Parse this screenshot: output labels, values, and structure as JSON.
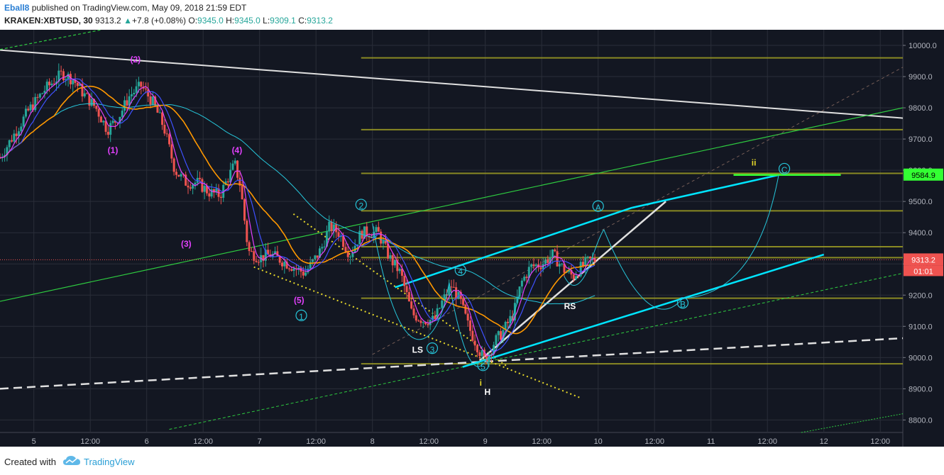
{
  "header": {
    "author": "Eball8",
    "published": "published on TradingView.com, May 09, 2018 21:59 EDT",
    "symbol": "KRAKEN:XBTUSD, 30",
    "last": "9313.2",
    "change": "+7.8 (+0.08%)",
    "o_label": "O:",
    "o": "9345.0",
    "h_label": "H:",
    "h": "9345.0",
    "l_label": "L:",
    "l": "9309.1",
    "c_label": "C:",
    "c": "9313.2"
  },
  "footer": {
    "created_with": "Created with",
    "brand": "TradingView"
  },
  "chart_data": {
    "type": "candlestick",
    "symbol": "KRAKEN:XBTUSD",
    "interval": "30",
    "ylim": [
      8760,
      10050
    ],
    "y_ticks": [
      10000,
      9900,
      9800,
      9700,
      9600,
      9500,
      9400,
      9300,
      9200,
      9100,
      9000,
      8900,
      8800
    ],
    "y_tick_labels": [
      "10000.0",
      "9900.0",
      "9800.0",
      "9700.0",
      "9600.0",
      "9500.0",
      "9400.0",
      "9300.0",
      "9200.0",
      "9100.0",
      "9000.0",
      "8900.0",
      "8800.0"
    ],
    "xlim": [
      4.7,
      12.7
    ],
    "x_ticks": [
      5,
      5.5,
      6,
      6.5,
      7,
      7.5,
      8,
      8.5,
      9,
      9.5,
      10,
      10.5,
      11,
      11.5,
      12,
      12.5
    ],
    "x_tick_labels": [
      "5",
      "12:00",
      "6",
      "12:00",
      "7",
      "12:00",
      "8",
      "12:00",
      "9",
      "12:00",
      "10",
      "12:00",
      "11",
      "12:00",
      "12",
      "12:00"
    ],
    "price_label": "9313.2",
    "price": 9313.2,
    "countdown_label": "01:01",
    "target_label": "9584.9",
    "target": 9584.9,
    "colors": {
      "background": "#131722",
      "grid": "#2a2e39",
      "axis_text": "#b2b5be",
      "up": "#26a69a",
      "down": "#ef5350",
      "ma_fast": "#3f51ff",
      "ma_mid": "#e040fb",
      "ma_orange": "#ff9800",
      "ma_cyan": "#26c6da",
      "trend": "#00e5ff",
      "level": "#9e9d24",
      "green_line": "#2ecc40",
      "yellow_dots": "#e6d82a"
    },
    "price_path": [
      [
        4.7,
        9640
      ],
      [
        4.8,
        9700
      ],
      [
        4.95,
        9790
      ],
      [
        5.1,
        9860
      ],
      [
        5.25,
        9910
      ],
      [
        5.35,
        9890
      ],
      [
        5.45,
        9840
      ],
      [
        5.55,
        9800
      ],
      [
        5.65,
        9730
      ],
      [
        5.75,
        9770
      ],
      [
        5.85,
        9840
      ],
      [
        5.95,
        9870
      ],
      [
        6.05,
        9820
      ],
      [
        6.15,
        9740
      ],
      [
        6.25,
        9600
      ],
      [
        6.35,
        9560
      ],
      [
        6.45,
        9560
      ],
      [
        6.55,
        9530
      ],
      [
        6.65,
        9520
      ],
      [
        6.7,
        9560
      ],
      [
        6.78,
        9620
      ],
      [
        6.83,
        9550
      ],
      [
        6.9,
        9340
      ],
      [
        7.0,
        9320
      ],
      [
        7.1,
        9330
      ],
      [
        7.2,
        9310
      ],
      [
        7.3,
        9290
      ],
      [
        7.4,
        9270
      ],
      [
        7.48,
        9310
      ],
      [
        7.55,
        9350
      ],
      [
        7.62,
        9420
      ],
      [
        7.7,
        9400
      ],
      [
        7.8,
        9330
      ],
      [
        7.9,
        9400
      ],
      [
        8.0,
        9400
      ],
      [
        8.05,
        9400
      ],
      [
        8.15,
        9320
      ],
      [
        8.25,
        9270
      ],
      [
        8.35,
        9140
      ],
      [
        8.45,
        9120
      ],
      [
        8.55,
        9120
      ],
      [
        8.62,
        9180
      ],
      [
        8.7,
        9230
      ],
      [
        8.78,
        9180
      ],
      [
        8.85,
        9100
      ],
      [
        8.95,
        9020
      ],
      [
        9.0,
        8990
      ],
      [
        9.08,
        9050
      ],
      [
        9.15,
        9080
      ],
      [
        9.25,
        9140
      ],
      [
        9.32,
        9240
      ],
      [
        9.4,
        9290
      ],
      [
        9.5,
        9300
      ],
      [
        9.6,
        9330
      ],
      [
        9.7,
        9280
      ],
      [
        9.78,
        9260
      ],
      [
        9.85,
        9290
      ],
      [
        9.92,
        9310
      ],
      [
        9.98,
        9313
      ]
    ],
    "wave_labels": [
      "(1)",
      "(2)",
      "(3)",
      "(4)",
      "(5)",
      "1",
      "2",
      "3",
      "4",
      "5",
      "A",
      "B",
      "C",
      "i",
      "ii"
    ],
    "pattern_labels": [
      "LS",
      "H",
      "RS"
    ]
  }
}
